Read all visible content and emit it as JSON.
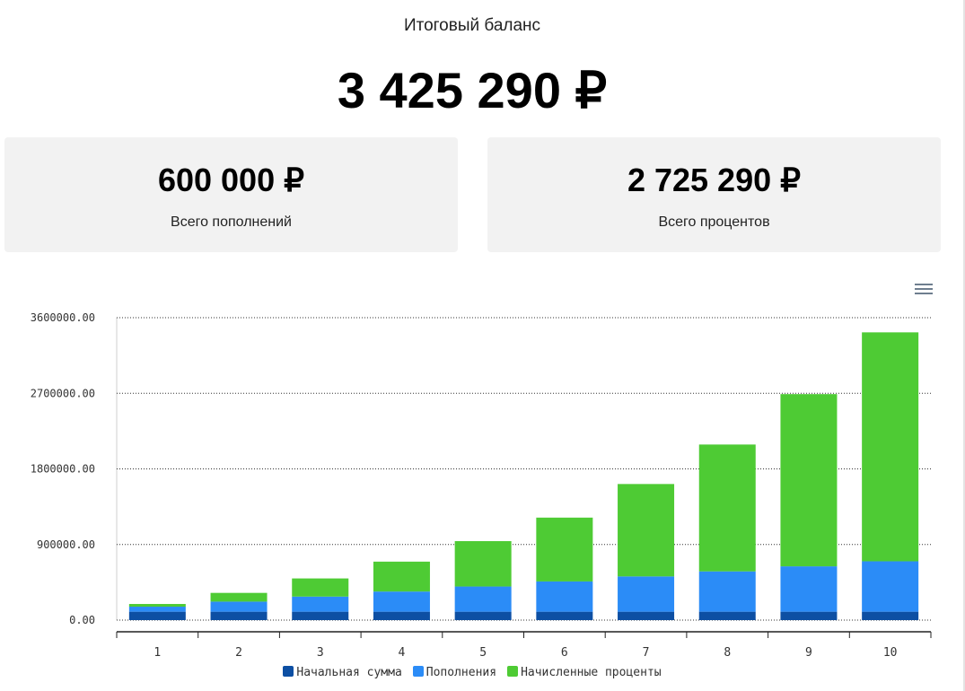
{
  "summary": {
    "title": "Итоговый баланс",
    "total": "3 425 290 ₽",
    "deposits_value": "600 000 ₽",
    "deposits_label": "Всего пополнений",
    "interest_value": "2 725 290 ₽",
    "interest_label": "Всего процентов"
  },
  "chart_menu_icon": "hamburger-menu-icon",
  "chart_data": {
    "type": "bar",
    "stacked": true,
    "categories": [
      "1",
      "2",
      "3",
      "4",
      "5",
      "6",
      "7",
      "8",
      "9",
      "10"
    ],
    "series": [
      {
        "name": "Начальная сумма",
        "color": "#0d4fa3",
        "values": [
          100000,
          100000,
          100000,
          100000,
          100000,
          100000,
          100000,
          100000,
          100000,
          100000
        ]
      },
      {
        "name": "Пополнения",
        "color": "#2b8cf7",
        "values": [
          60000,
          120000,
          180000,
          240000,
          300000,
          360000,
          420000,
          480000,
          540000,
          600000
        ]
      },
      {
        "name": "Начисленные проценты",
        "color": "#4ecb34",
        "values": [
          32000,
          104000,
          216000,
          356000,
          540000,
          760000,
          1100000,
          1510000,
          2050000,
          2725290
        ]
      }
    ],
    "yticks": [
      "0.00",
      "900000.00",
      "1800000.00",
      "2700000.00",
      "3600000.00"
    ],
    "ylim": [
      0,
      3600000
    ],
    "grid": true,
    "legend_position": "bottom"
  }
}
